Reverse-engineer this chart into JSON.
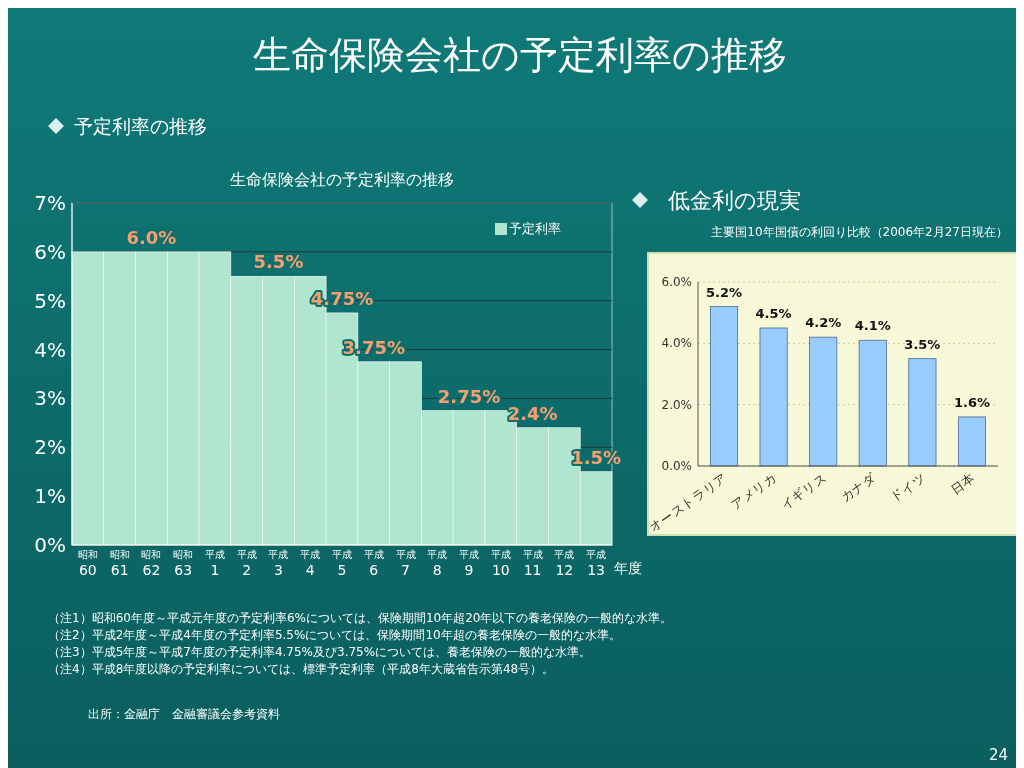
{
  "chart_data": [
    {
      "type": "other",
      "title": "生命保険会社の予定利率の推移",
      "annotations": [
        "24"
      ]
    },
    {
      "type": "bar",
      "title": "生命保険会社の予定利率の推移",
      "subtitle": "予定利率の推移",
      "xlabel": "年度",
      "categories": [
        "昭和\n60",
        "昭和\n61",
        "昭和\n62",
        "昭和\n63",
        "平成\n1",
        "平成\n2",
        "平成\n3",
        "平成\n4",
        "平成\n5",
        "平成\n6",
        "平成\n7",
        "平成\n8",
        "平成\n9",
        "平成\n10",
        "平成\n11",
        "平成\n12",
        "平成\n13"
      ],
      "series": [
        {
          "name": "予定利率",
          "color": "#b0e6d0",
          "values": [
            6,
            6,
            6,
            6,
            6,
            5.5,
            5.5,
            5.5,
            4.75,
            3.75,
            3.75,
            2.75,
            2.75,
            2.75,
            2.4,
            2.4,
            1.5
          ],
          "value_labels": [
            null,
            null,
            "6.0%",
            null,
            null,
            null,
            "5.5%",
            null,
            "4.75%",
            "3.75%",
            null,
            null,
            "2.75%",
            null,
            "2.4%",
            null,
            "1.5%"
          ]
        }
      ],
      "ylim": [
        0,
        7
      ],
      "yticks": [
        {
          "value": 0,
          "label": "0%"
        },
        {
          "value": 1,
          "label": "1%"
        },
        {
          "value": 2,
          "label": "2%"
        },
        {
          "value": 3,
          "label": "3%"
        },
        {
          "value": 4,
          "label": "4%"
        },
        {
          "value": 5,
          "label": "5%"
        },
        {
          "value": 6,
          "label": "6%"
        },
        {
          "value": 7,
          "label": "7%"
        }
      ],
      "grid": "y",
      "legend": "top right",
      "annotations": [
        "（注1）昭和60年度～平成元年度の予定利率6%については、保険期間10年超20年以下の養老保険の一般的な水準。",
        "（注2）平成2年度～平成4年度の予定利率5.5%については、保険期間10年超の養老保険の一般的な水準。",
        "（注3）平成5年度～平成7年度の予定利率4.75%及び3.75%については、養老保険の一般的な水準。",
        "（注4）平成8年度以降の予定利率については、標準予定利率（平成8年大蔵省告示第48号）。",
        "出所：金融庁　金融審議会参考資料"
      ]
    },
    {
      "type": "bar",
      "title": "低金利の現実",
      "subtitle": "主要国10年国債の利回り比較（2006年2月27日現在）",
      "categories": [
        "オーストラリア",
        "アメリカ",
        "イギリス",
        "カナダ",
        "ドイツ",
        "日本"
      ],
      "values": [
        5.2,
        4.5,
        4.2,
        4.1,
        3.5,
        1.6
      ],
      "color": "#99ccff",
      "value_labels": [
        "5.2%",
        "4.5%",
        "4.2%",
        "4.1%",
        "3.5%",
        "1.6%"
      ],
      "ylim": [
        0,
        6
      ],
      "yticks": [
        {
          "value": 0,
          "label": "0.0%"
        },
        {
          "value": 2,
          "label": "2.0%"
        },
        {
          "value": 4,
          "label": "4.0%"
        },
        {
          "value": 6,
          "label": "6.0%"
        }
      ],
      "grid": "y"
    }
  ]
}
